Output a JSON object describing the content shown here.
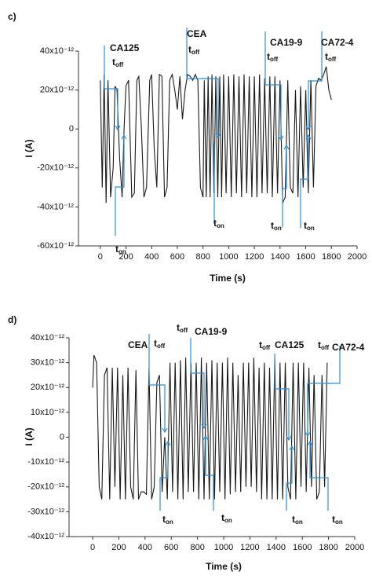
{
  "chart_data": [
    {
      "type": "line",
      "panel": "c)",
      "xlabel": "Time (s)",
      "ylabel": "I (A)",
      "color": "#1a1a1a",
      "annotation_color": "#2b8fd6",
      "xlim": [
        -170,
        2000
      ],
      "xticks": [
        0,
        200,
        400,
        600,
        800,
        1000,
        1200,
        1400,
        1600,
        1800,
        2000
      ],
      "ylim": [
        -6e-11,
        4e-11
      ],
      "yticks": [
        {
          "value": -6e-11,
          "label": "-60x10⁻¹²"
        },
        {
          "value": -4e-11,
          "label": "-40x10⁻¹²"
        },
        {
          "value": -2e-11,
          "label": "-20x10⁻¹²"
        },
        0,
        {
          "value": 2e-11,
          "label": "20x10⁻¹²"
        },
        {
          "value": 4e-11,
          "label": "40x10⁻¹²"
        }
      ],
      "x": [
        0,
        15,
        30,
        45,
        60,
        80,
        100,
        115,
        130,
        150,
        170,
        185,
        200,
        220,
        245,
        265,
        285,
        300,
        320,
        340,
        360,
        385,
        400,
        420,
        440,
        460,
        480,
        500,
        520,
        540,
        560,
        580,
        600,
        620,
        640,
        660,
        680,
        700,
        720,
        740,
        760,
        780,
        800,
        810,
        825,
        840,
        855,
        870,
        885,
        900,
        915,
        930,
        945,
        960,
        980,
        1000,
        1020,
        1040,
        1060,
        1080,
        1100,
        1120,
        1140,
        1160,
        1180,
        1200,
        1220,
        1240,
        1260,
        1280,
        1300,
        1320,
        1340,
        1360,
        1380,
        1400,
        1420,
        1440,
        1460,
        1480,
        1500,
        1520,
        1540,
        1560,
        1580,
        1600,
        1620,
        1640,
        1660,
        1680,
        1700,
        1720,
        1740,
        1760,
        1780,
        1800
      ],
      "values": [
        2.5e-11,
        -3e-11,
        2.8e-11,
        -3.8e-11,
        2.5e-11,
        -3.5e-11,
        -2e-11,
        2.2e-11,
        2e-11,
        -1.5e-11,
        -3.5e-11,
        0,
        2.2e-11,
        2.5e-11,
        -3.5e-11,
        -3.3e-11,
        2.5e-11,
        2.7e-11,
        0,
        -3.5e-11,
        -3e-11,
        2.5e-11,
        2.8e-11,
        -1e-11,
        -3e-11,
        2.8e-11,
        2.7e-11,
        -3.5e-11,
        -3e-11,
        2.5e-11,
        2.8e-11,
        2e-11,
        1e-11,
        2.7e-11,
        5e-12,
        2e-11,
        2.8e-11,
        2.7e-11,
        2.5e-11,
        2.8e-11,
        2.5e-11,
        -3e-11,
        -3.5e-11,
        2.5e-11,
        -3.5e-11,
        2.7e-11,
        -3.5e-11,
        2.8e-11,
        -3.3e-11,
        2.7e-11,
        -3.5e-11,
        2.7e-11,
        -3.5e-11,
        2.8e-11,
        -3.3e-11,
        2.7e-11,
        -3.5e-11,
        2.8e-11,
        -3.3e-11,
        2.7e-11,
        -3.5e-11,
        2.8e-11,
        -3.3e-11,
        2.7e-11,
        -3.5e-11,
        2.7e-11,
        -3.5e-11,
        2.8e-11,
        -3.3e-11,
        2.6e-11,
        -3.3e-11,
        2.7e-11,
        -3.5e-11,
        2.7e-11,
        -3.3e-11,
        2.5e-11,
        -3.8e-11,
        -3.5e-11,
        2.5e-11,
        -3e-11,
        -3.3e-11,
        2e-11,
        -3.5e-11,
        2.2e-11,
        -3e-11,
        2e-11,
        -3.3e-11,
        2.5e-11,
        -3e-11,
        2.2e-11,
        2.6e-11,
        2.5e-11,
        2.8e-11,
        3.2e-11,
        2e-11,
        1.5e-11
      ],
      "annotations": [
        {
          "label": "CA125",
          "toff": "toff",
          "ton": "ton"
        },
        {
          "label": "CEA",
          "toff": "toff",
          "ton": "ton"
        },
        {
          "label": "CA19-9",
          "toff": "toff",
          "ton": "ton"
        },
        {
          "label": "CA72-4",
          "toff": "toff",
          "ton": "ton"
        }
      ]
    },
    {
      "type": "line",
      "panel": "d)",
      "xlabel": "Time (s)",
      "ylabel": "I (A)",
      "color": "#1a1a1a",
      "annotation_color": "#2b8fd6",
      "xlim": [
        -180,
        2000
      ],
      "xticks": [
        0,
        200,
        400,
        600,
        800,
        1000,
        1200,
        1400,
        1600,
        1800,
        2000
      ],
      "ylim": [
        -4e-11,
        4e-11
      ],
      "yticks": [
        {
          "value": -4e-11,
          "label": "-40x10⁻¹²"
        },
        {
          "value": -3e-11,
          "label": "-30x10⁻¹²"
        },
        {
          "value": -2e-11,
          "label": "-20x10⁻¹²"
        },
        {
          "value": -1e-11,
          "label": "-10x10⁻¹²"
        },
        0,
        {
          "value": 1e-11,
          "label": "10x10⁻¹²"
        },
        {
          "value": 2e-11,
          "label": "20x10⁻¹²"
        },
        {
          "value": 3e-11,
          "label": "30x10⁻¹²"
        },
        {
          "value": 4e-11,
          "label": "40x10⁻¹²"
        }
      ],
      "x": [
        0,
        10,
        30,
        50,
        70,
        90,
        110,
        130,
        150,
        170,
        190,
        210,
        230,
        250,
        270,
        290,
        310,
        330,
        350,
        370,
        390,
        410,
        430,
        450,
        470,
        490,
        510,
        530,
        550,
        570,
        590,
        610,
        630,
        650,
        670,
        690,
        710,
        730,
        750,
        770,
        790,
        810,
        830,
        850,
        870,
        890,
        910,
        930,
        950,
        970,
        990,
        1010,
        1030,
        1050,
        1070,
        1090,
        1110,
        1130,
        1150,
        1170,
        1190,
        1210,
        1230,
        1250,
        1270,
        1290,
        1310,
        1330,
        1350,
        1370,
        1390,
        1410,
        1430,
        1450,
        1470,
        1490,
        1510,
        1530,
        1550,
        1570,
        1590,
        1610,
        1630,
        1650,
        1670,
        1690,
        1710,
        1730,
        1750,
        1770,
        1790
      ],
      "values": [
        2e-11,
        3.3e-11,
        3e-11,
        -2e-11,
        -2.5e-11,
        2.5e-11,
        2.8e-11,
        -2.5e-11,
        2.8e-11,
        -2e-11,
        2.8e-11,
        -2.5e-11,
        2.5e-11,
        -2.5e-11,
        2.8e-11,
        -2e-11,
        -2.5e-11,
        2.7e-11,
        -2.5e-11,
        -2.2e-11,
        -2.2e-11,
        -2.3e-11,
        2.8e-11,
        -2.5e-11,
        -2e-11,
        2.2e-11,
        2.5e-11,
        -2.2e-11,
        0,
        -2.5e-11,
        3e-11,
        -2.2e-11,
        3e-11,
        -2.5e-11,
        3.1e-11,
        -2.5e-11,
        3.2e-11,
        -2.2e-11,
        3e-11,
        -2.2e-11,
        3e-11,
        -2.5e-11,
        3.2e-11,
        -2.5e-11,
        3e-11,
        -2.5e-11,
        3.1e-11,
        -2.5e-11,
        3e-11,
        -2.2e-11,
        3e-11,
        -2.5e-11,
        3.2e-11,
        -2.3e-11,
        3e-11,
        -2.2e-11,
        2.5e-11,
        -2.2e-11,
        3e-11,
        -2e-11,
        3e-11,
        -2e-11,
        3.2e-11,
        -2.2e-11,
        2.8e-11,
        -2.5e-11,
        3e-11,
        -2.5e-11,
        2.8e-11,
        -2.5e-11,
        3.2e-11,
        -2.5e-11,
        3e-11,
        -2.5e-11,
        3e-11,
        -2e-11,
        -2.5e-11,
        3e-11,
        -2.5e-11,
        3e-11,
        -2e-11,
        3e-11,
        -2.2e-11,
        2.8e-11,
        -2e-11,
        2.5e-11,
        -2.5e-11,
        -2.2e-11,
        2.5e-11,
        -2e-11,
        3e-11
      ],
      "annotations": [
        {
          "label": "CEA",
          "toff": "toff",
          "ton": "ton"
        },
        {
          "label": "CA19-9",
          "toff": "toff",
          "ton": "ton"
        },
        {
          "label": "CA125",
          "toff": "toff",
          "ton": "ton"
        },
        {
          "label": "CA72-4",
          "toff": "toff",
          "ton": "ton"
        }
      ]
    }
  ]
}
